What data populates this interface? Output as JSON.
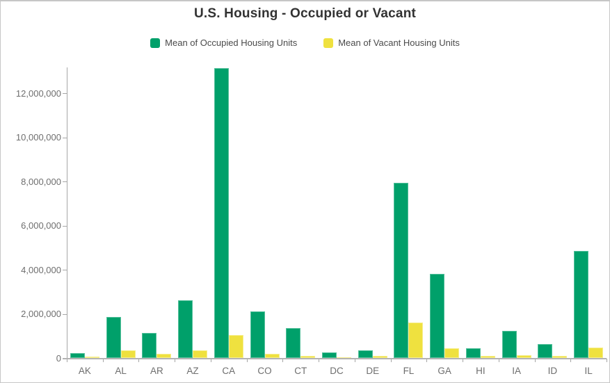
{
  "title": "U.S. Housing - Occupied or Vacant",
  "colors": {
    "occupied": "#00a06a",
    "occupied_edge": "#55c09c",
    "vacant": "#efe13f",
    "vacant_edge": "#f6ee8d",
    "axis": "#a6a6a6",
    "baseline": "#b3b3b3",
    "tick_label": "#6e6e6e"
  },
  "legend": {
    "items": [
      {
        "label": "Mean of Occupied Housing Units",
        "color_key": "occupied"
      },
      {
        "label": "Mean of Vacant Housing Units",
        "color_key": "vacant"
      }
    ]
  },
  "chart_data": {
    "type": "bar",
    "title": "U.S. Housing - Occupied or Vacant",
    "categories": [
      "AK",
      "AL",
      "AR",
      "AZ",
      "CA",
      "CO",
      "CT",
      "DC",
      "DE",
      "FL",
      "GA",
      "HI",
      "IA",
      "ID",
      "IL"
    ],
    "series": [
      {
        "name": "Mean of Occupied Housing Units",
        "color_key": "occupied",
        "values": [
          230000,
          1850000,
          1130000,
          2600000,
          13130000,
          2100000,
          1350000,
          260000,
          360000,
          7930000,
          3820000,
          440000,
          1240000,
          620000,
          4850000
        ]
      },
      {
        "name": "Mean of Vacant Housing Units",
        "color_key": "vacant",
        "values": [
          60000,
          340000,
          180000,
          360000,
          1050000,
          180000,
          110000,
          30000,
          90000,
          1620000,
          450000,
          80000,
          130000,
          85000,
          470000
        ]
      }
    ],
    "xlabel": "",
    "ylabel": "",
    "ylim": [
      0,
      13170000
    ],
    "yticks": [
      0,
      2000000,
      4000000,
      6000000,
      8000000,
      10000000,
      12000000
    ],
    "ytick_labels": [
      "0",
      "2,000,000",
      "4,000,000",
      "6,000,000",
      "8,000,000",
      "10,000,000",
      "12,000,000"
    ],
    "grid": false,
    "legend_position": "top-center"
  }
}
